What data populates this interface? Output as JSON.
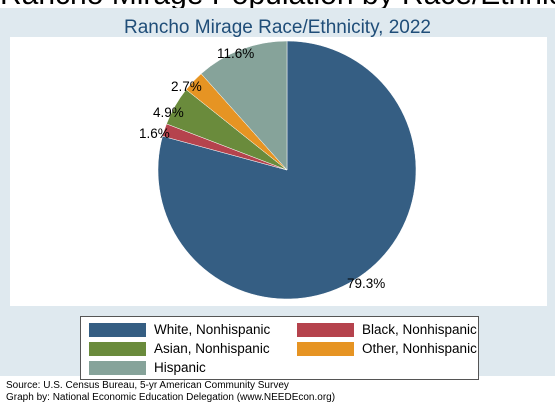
{
  "header": {
    "cut_title": "Rancho Mirage Population by Race/Ethnicity"
  },
  "chart_data": {
    "type": "pie",
    "title": "Rancho Mirage Race/Ethnicity, 2022",
    "slices": [
      {
        "name": "White, Nonhispanic",
        "value": 79.3,
        "label": "79.3%",
        "color": "#355e83"
      },
      {
        "name": "Black, Nonhispanic",
        "value": 1.6,
        "label": "1.6%",
        "color": "#b5434d"
      },
      {
        "name": "Asian, Nonhispanic",
        "value": 4.9,
        "label": "4.9%",
        "color": "#6a8b3c"
      },
      {
        "name": "Other, Nonhispanic",
        "value": 2.7,
        "label": "2.7%",
        "color": "#e69423"
      },
      {
        "name": "Hispanic",
        "value": 11.6,
        "label": "11.6%",
        "color": "#86a39a"
      }
    ],
    "legend_placement": "bottom"
  },
  "footer": {
    "source": "Source:  U.S. Census Bureau, 5-yr American Community Survey",
    "credit": "Graph by: National Economic Education Delegation (www.NEEDEcon.org)"
  }
}
